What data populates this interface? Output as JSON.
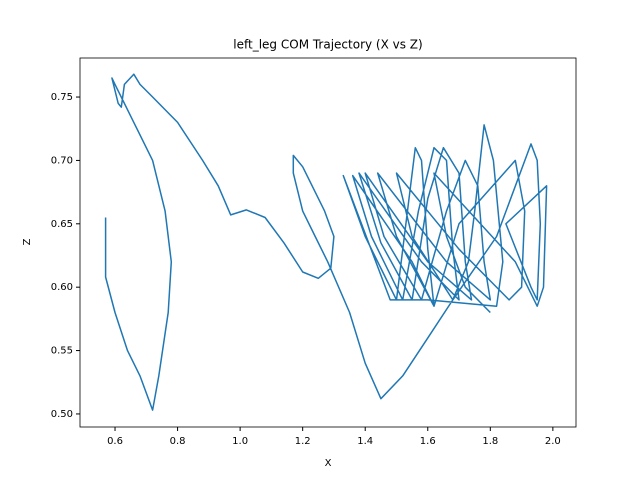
{
  "chart_data": {
    "type": "line",
    "title": "left_leg COM Trajectory (X vs Z)",
    "x_label": "X",
    "y_label": "Z",
    "xlim": [
      0.488,
      2.074
    ],
    "ylim": [
      0.4897,
      0.7808
    ],
    "xticks": [
      0.6,
      0.8,
      {
        "value": 1,
        "label": "1.0"
      },
      1.2,
      1.4,
      1.6,
      1.8,
      {
        "value": 2,
        "label": "2.0"
      }
    ],
    "yticks": [
      {
        "value": 0.5,
        "label": "0.50"
      },
      0.55,
      {
        "value": 0.6,
        "label": "0.60"
      },
      0.65,
      {
        "value": 0.7,
        "label": "0.70"
      },
      0.75
    ],
    "grid": false,
    "series": [
      {
        "color": "#1f77b4",
        "x": [
          0.57,
          0.57,
          0.6,
          0.64,
          0.68,
          0.72,
          0.74,
          0.77,
          0.78,
          0.76,
          0.72,
          0.66,
          0.6,
          0.59,
          0.61,
          0.62,
          0.63,
          0.66,
          0.68,
          0.72,
          0.8,
          0.88,
          0.93,
          0.97,
          1.02,
          1.08,
          1.14,
          1.2,
          1.25,
          1.29,
          1.3,
          1.27,
          1.24,
          1.2,
          1.17,
          1.17,
          1.2,
          1.24,
          1.28,
          1.35,
          1.4,
          1.45,
          1.52,
          1.6,
          1.68,
          1.73,
          1.75,
          1.78,
          1.81,
          1.84,
          1.82,
          1.6,
          1.48,
          1.33,
          1.4,
          1.5,
          1.53,
          1.56,
          1.58,
          1.6,
          1.62,
          1.55,
          1.36,
          1.42,
          1.52,
          1.57,
          1.62,
          1.66,
          1.68,
          1.7,
          1.58,
          1.38,
          1.45,
          1.55,
          1.6,
          1.65,
          1.7,
          1.72,
          1.74,
          1.6,
          1.4,
          1.46,
          1.58,
          1.66,
          1.72,
          1.76,
          1.78,
          1.8,
          1.66,
          1.44,
          1.5,
          1.62,
          1.7,
          1.88,
          1.91,
          1.9,
          1.86,
          1.7,
          1.5,
          1.55,
          1.68,
          1.82,
          1.93,
          1.95,
          1.96,
          1.95,
          1.93,
          1.85,
          1.98,
          1.97,
          1.95,
          1.88,
          1.62,
          1.66,
          1.72,
          1.8
        ],
        "values": [
          0.655,
          0.608,
          0.58,
          0.55,
          0.53,
          0.503,
          0.53,
          0.58,
          0.62,
          0.66,
          0.7,
          0.73,
          0.76,
          0.765,
          0.745,
          0.742,
          0.76,
          0.768,
          0.76,
          0.75,
          0.73,
          0.7,
          0.68,
          0.657,
          0.661,
          0.655,
          0.635,
          0.612,
          0.607,
          0.615,
          0.64,
          0.66,
          0.675,
          0.695,
          0.704,
          0.69,
          0.66,
          0.64,
          0.62,
          0.58,
          0.54,
          0.512,
          0.53,
          0.56,
          0.59,
          0.62,
          0.66,
          0.728,
          0.7,
          0.62,
          0.585,
          0.59,
          0.59,
          0.688,
          0.64,
          0.59,
          0.65,
          0.71,
          0.7,
          0.63,
          0.585,
          0.62,
          0.688,
          0.64,
          0.59,
          0.66,
          0.71,
          0.7,
          0.63,
          0.59,
          0.62,
          0.69,
          0.635,
          0.59,
          0.67,
          0.71,
          0.69,
          0.62,
          0.59,
          0.62,
          0.69,
          0.64,
          0.59,
          0.66,
          0.7,
          0.68,
          0.62,
          0.59,
          0.62,
          0.69,
          0.64,
          0.585,
          0.65,
          0.7,
          0.66,
          0.6,
          0.59,
          0.63,
          0.69,
          0.64,
          0.59,
          0.64,
          0.713,
          0.7,
          0.65,
          0.59,
          0.6,
          0.65,
          0.68,
          0.6,
          0.585,
          0.62,
          0.69,
          0.64,
          0.6,
          0.58
        ]
      }
    ]
  }
}
